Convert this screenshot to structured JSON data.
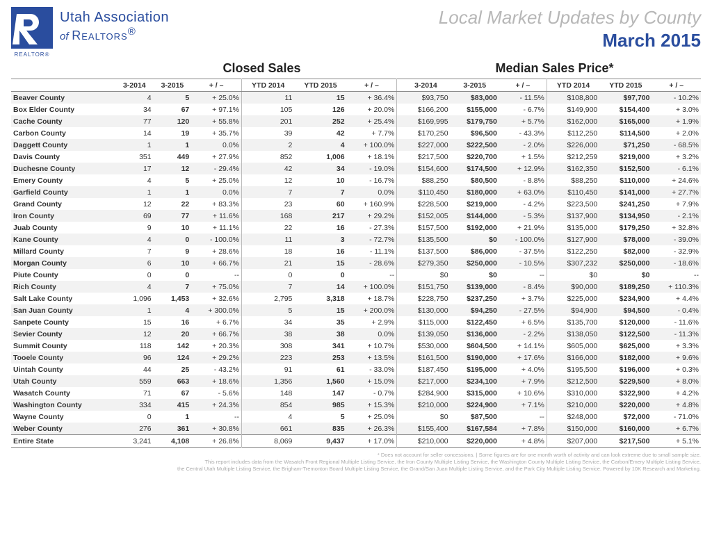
{
  "header": {
    "assoc_line1": "Utah Association",
    "assoc_of": "of",
    "assoc_realtors": "Realtors",
    "realtor_label": "REALTOR",
    "title_line1": "Local Market Updates by County",
    "title_line2": "March 2015"
  },
  "sections": {
    "closed_sales": "Closed Sales",
    "median_price": "Median Sales Price*"
  },
  "columns": [
    "3-2014",
    "3-2015",
    "+ / –",
    "YTD 2014",
    "YTD 2015",
    "+ / –",
    "3-2014",
    "3-2015",
    "+ / –",
    "YTD 2014",
    "YTD 2015",
    "+ / –"
  ],
  "rows": [
    {
      "label": "Beaver County",
      "cells": [
        "4",
        "5",
        "+ 25.0%",
        "11",
        "15",
        "+ 36.4%",
        "$93,750",
        "$83,000",
        "- 11.5%",
        "$108,800",
        "$97,700",
        "- 10.2%"
      ]
    },
    {
      "label": "Box Elder County",
      "cells": [
        "34",
        "67",
        "+ 97.1%",
        "105",
        "126",
        "+ 20.0%",
        "$166,200",
        "$155,000",
        "- 6.7%",
        "$149,900",
        "$154,400",
        "+ 3.0%"
      ]
    },
    {
      "label": "Cache County",
      "cells": [
        "77",
        "120",
        "+ 55.8%",
        "201",
        "252",
        "+ 25.4%",
        "$169,995",
        "$179,750",
        "+ 5.7%",
        "$162,000",
        "$165,000",
        "+ 1.9%"
      ]
    },
    {
      "label": "Carbon County",
      "cells": [
        "14",
        "19",
        "+ 35.7%",
        "39",
        "42",
        "+ 7.7%",
        "$170,250",
        "$96,500",
        "- 43.3%",
        "$112,250",
        "$114,500",
        "+ 2.0%"
      ]
    },
    {
      "label": "Daggett County",
      "cells": [
        "1",
        "1",
        "0.0%",
        "2",
        "4",
        "+ 100.0%",
        "$227,000",
        "$222,500",
        "- 2.0%",
        "$226,000",
        "$71,250",
        "- 68.5%"
      ]
    },
    {
      "label": "Davis County",
      "cells": [
        "351",
        "449",
        "+ 27.9%",
        "852",
        "1,006",
        "+ 18.1%",
        "$217,500",
        "$220,700",
        "+ 1.5%",
        "$212,259",
        "$219,000",
        "+ 3.2%"
      ]
    },
    {
      "label": "Duchesne County",
      "cells": [
        "17",
        "12",
        "- 29.4%",
        "42",
        "34",
        "- 19.0%",
        "$154,600",
        "$174,500",
        "+ 12.9%",
        "$162,350",
        "$152,500",
        "- 6.1%"
      ]
    },
    {
      "label": "Emery County",
      "cells": [
        "4",
        "5",
        "+ 25.0%",
        "12",
        "10",
        "- 16.7%",
        "$88,250",
        "$80,500",
        "- 8.8%",
        "$88,250",
        "$110,000",
        "+ 24.6%"
      ]
    },
    {
      "label": "Garfield County",
      "cells": [
        "1",
        "1",
        "0.0%",
        "7",
        "7",
        "0.0%",
        "$110,450",
        "$180,000",
        "+ 63.0%",
        "$110,450",
        "$141,000",
        "+ 27.7%"
      ]
    },
    {
      "label": "Grand County",
      "cells": [
        "12",
        "22",
        "+ 83.3%",
        "23",
        "60",
        "+ 160.9%",
        "$228,500",
        "$219,000",
        "- 4.2%",
        "$223,500",
        "$241,250",
        "+ 7.9%"
      ]
    },
    {
      "label": "Iron County",
      "cells": [
        "69",
        "77",
        "+ 11.6%",
        "168",
        "217",
        "+ 29.2%",
        "$152,005",
        "$144,000",
        "- 5.3%",
        "$137,900",
        "$134,950",
        "- 2.1%"
      ]
    },
    {
      "label": "Juab County",
      "cells": [
        "9",
        "10",
        "+ 11.1%",
        "22",
        "16",
        "- 27.3%",
        "$157,500",
        "$192,000",
        "+ 21.9%",
        "$135,000",
        "$179,250",
        "+ 32.8%"
      ]
    },
    {
      "label": "Kane County",
      "cells": [
        "4",
        "0",
        "- 100.0%",
        "11",
        "3",
        "- 72.7%",
        "$135,500",
        "$0",
        "- 100.0%",
        "$127,900",
        "$78,000",
        "- 39.0%"
      ]
    },
    {
      "label": "Millard County",
      "cells": [
        "7",
        "9",
        "+ 28.6%",
        "18",
        "16",
        "- 11.1%",
        "$137,500",
        "$86,000",
        "- 37.5%",
        "$122,250",
        "$82,000",
        "- 32.9%"
      ]
    },
    {
      "label": "Morgan County",
      "cells": [
        "6",
        "10",
        "+ 66.7%",
        "21",
        "15",
        "- 28.6%",
        "$279,350",
        "$250,000",
        "- 10.5%",
        "$307,232",
        "$250,000",
        "- 18.6%"
      ]
    },
    {
      "label": "Piute County",
      "cells": [
        "0",
        "0",
        "--",
        "0",
        "0",
        "--",
        "$0",
        "$0",
        "--",
        "$0",
        "$0",
        "--"
      ]
    },
    {
      "label": "Rich County",
      "cells": [
        "4",
        "7",
        "+ 75.0%",
        "7",
        "14",
        "+ 100.0%",
        "$151,750",
        "$139,000",
        "- 8.4%",
        "$90,000",
        "$189,250",
        "+ 110.3%"
      ]
    },
    {
      "label": "Salt Lake County",
      "cells": [
        "1,096",
        "1,453",
        "+ 32.6%",
        "2,795",
        "3,318",
        "+ 18.7%",
        "$228,750",
        "$237,250",
        "+ 3.7%",
        "$225,000",
        "$234,900",
        "+ 4.4%"
      ]
    },
    {
      "label": "San Juan County",
      "cells": [
        "1",
        "4",
        "+ 300.0%",
        "5",
        "15",
        "+ 200.0%",
        "$130,000",
        "$94,250",
        "- 27.5%",
        "$94,900",
        "$94,500",
        "- 0.4%"
      ]
    },
    {
      "label": "Sanpete County",
      "cells": [
        "15",
        "16",
        "+ 6.7%",
        "34",
        "35",
        "+ 2.9%",
        "$115,000",
        "$122,450",
        "+ 6.5%",
        "$135,700",
        "$120,000",
        "- 11.6%"
      ]
    },
    {
      "label": "Sevier County",
      "cells": [
        "12",
        "20",
        "+ 66.7%",
        "38",
        "38",
        "0.0%",
        "$139,050",
        "$136,000",
        "- 2.2%",
        "$138,050",
        "$122,500",
        "- 11.3%"
      ]
    },
    {
      "label": "Summit County",
      "cells": [
        "118",
        "142",
        "+ 20.3%",
        "308",
        "341",
        "+ 10.7%",
        "$530,000",
        "$604,500",
        "+ 14.1%",
        "$605,000",
        "$625,000",
        "+ 3.3%"
      ]
    },
    {
      "label": "Tooele County",
      "cells": [
        "96",
        "124",
        "+ 29.2%",
        "223",
        "253",
        "+ 13.5%",
        "$161,500",
        "$190,000",
        "+ 17.6%",
        "$166,000",
        "$182,000",
        "+ 9.6%"
      ]
    },
    {
      "label": "Uintah County",
      "cells": [
        "44",
        "25",
        "- 43.2%",
        "91",
        "61",
        "- 33.0%",
        "$187,450",
        "$195,000",
        "+ 4.0%",
        "$195,500",
        "$196,000",
        "+ 0.3%"
      ]
    },
    {
      "label": "Utah County",
      "cells": [
        "559",
        "663",
        "+ 18.6%",
        "1,356",
        "1,560",
        "+ 15.0%",
        "$217,000",
        "$234,100",
        "+ 7.9%",
        "$212,500",
        "$229,500",
        "+ 8.0%"
      ]
    },
    {
      "label": "Wasatch County",
      "cells": [
        "71",
        "67",
        "- 5.6%",
        "148",
        "147",
        "- 0.7%",
        "$284,900",
        "$315,000",
        "+ 10.6%",
        "$310,000",
        "$322,900",
        "+ 4.2%"
      ]
    },
    {
      "label": "Washington County",
      "cells": [
        "334",
        "415",
        "+ 24.3%",
        "854",
        "985",
        "+ 15.3%",
        "$210,000",
        "$224,900",
        "+ 7.1%",
        "$210,000",
        "$220,000",
        "+ 4.8%"
      ]
    },
    {
      "label": "Wayne County",
      "cells": [
        "0",
        "1",
        "--",
        "4",
        "5",
        "+ 25.0%",
        "$0",
        "$87,500",
        "--",
        "$248,000",
        "$72,000",
        "- 71.0%"
      ]
    },
    {
      "label": "Weber County",
      "cells": [
        "276",
        "361",
        "+ 30.8%",
        "661",
        "835",
        "+ 26.3%",
        "$155,400",
        "$167,584",
        "+ 7.8%",
        "$150,000",
        "$160,000",
        "+ 6.7%"
      ]
    }
  ],
  "total": {
    "label": "Entire State",
    "cells": [
      "3,241",
      "4,108",
      "+ 26.8%",
      "8,069",
      "9,437",
      "+ 17.0%",
      "$210,000",
      "$220,000",
      "+ 4.8%",
      "$207,000",
      "$217,500",
      "+ 5.1%"
    ]
  },
  "bold_cols": [
    1,
    4,
    7,
    10
  ],
  "vsep_after": [
    2,
    5,
    8
  ],
  "footer": {
    "line1": "* Does not account for seller concessions.  |  Some figures are for one month worth of activity and can look extreme due to small sample size.",
    "line2": "This report includes data from the Wasatch Front Regional Multiple Listing Service, the Iron County Multiple Listing Service, the Washington County Multiple Listing Service, the Carbon/Emery Multiple Listing Service,",
    "line3": "the Central Utah Multiple Listing Service, the Brigham-Tremonton Board Multiple Listing Service, the Grand/San Juan Multiple Listing Service, and the Park City Multiple Listing Service. Powered by 10K Research and Marketing."
  },
  "style": {
    "page_bg": "#ffffff",
    "brand_blue": "#2a4d9e",
    "header_gray": "#b7b7b7",
    "row_alt_bg": "#f2f2f2",
    "border_color": "#888888",
    "footer_color": "#aaaaaa",
    "body_font_size": 10.5,
    "title_font_size": 26
  }
}
